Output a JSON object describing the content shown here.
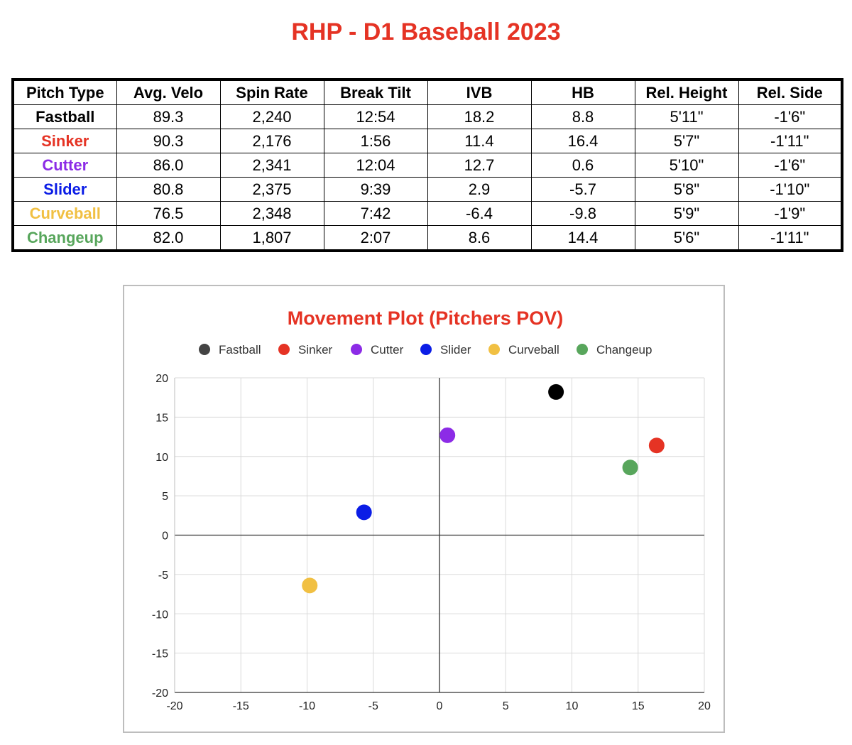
{
  "title": "RHP - D1 Baseball 2023",
  "table": {
    "headers": [
      "Pitch Type",
      "Avg. Velo",
      "Spin Rate",
      "Break Tilt",
      "IVB",
      "HB",
      "Rel. Height",
      "Rel. Side"
    ],
    "rows": [
      {
        "pitch": "Fastball",
        "color": "#000000",
        "cells": [
          "89.3",
          "2,240",
          "12:54",
          "18.2",
          "8.8",
          "5'11\"",
          "-1'6\""
        ]
      },
      {
        "pitch": "Sinker",
        "color": "#e53324",
        "cells": [
          "90.3",
          "2,176",
          "1:56",
          "11.4",
          "16.4",
          "5'7\"",
          "-1'11\""
        ]
      },
      {
        "pitch": "Cutter",
        "color": "#8c2be6",
        "cells": [
          "86.0",
          "2,341",
          "12:04",
          "12.7",
          "0.6",
          "5'10\"",
          "-1'6\""
        ]
      },
      {
        "pitch": "Slider",
        "color": "#0b1de6",
        "cells": [
          "80.8",
          "2,375",
          "9:39",
          "2.9",
          "-5.7",
          "5'8\"",
          "-1'10\""
        ]
      },
      {
        "pitch": "Curveball",
        "color": "#f1c043",
        "cells": [
          "76.5",
          "2,348",
          "7:42",
          "-6.4",
          "-9.8",
          "5'9\"",
          "-1'9\""
        ]
      },
      {
        "pitch": "Changeup",
        "color": "#58a65c",
        "cells": [
          "82.0",
          "1,807",
          "2:07",
          "8.6",
          "14.4",
          "5'6\"",
          "-1'11\""
        ]
      }
    ]
  },
  "chart_data": {
    "type": "scatter",
    "title": "Movement Plot (Pitchers POV)",
    "title_color": "#e53324",
    "xlabel": "",
    "ylabel": "",
    "xlim": [
      -20,
      20
    ],
    "ylim": [
      -20,
      20
    ],
    "xticks": [
      -20,
      -15,
      -10,
      -5,
      0,
      5,
      10,
      15,
      20
    ],
    "yticks": [
      20,
      15,
      10,
      5,
      0,
      -5,
      -10,
      -15,
      -20
    ],
    "grid": true,
    "legend_position": "top",
    "series": [
      {
        "name": "Fastball",
        "color": "#000000",
        "legend_color": "#444444",
        "points": [
          [
            8.8,
            18.2
          ]
        ]
      },
      {
        "name": "Sinker",
        "color": "#e53324",
        "legend_color": "#e53324",
        "points": [
          [
            16.4,
            11.4
          ]
        ]
      },
      {
        "name": "Cutter",
        "color": "#8c2be6",
        "legend_color": "#8c2be6",
        "points": [
          [
            0.6,
            12.7
          ]
        ]
      },
      {
        "name": "Slider",
        "color": "#0b1de6",
        "legend_color": "#0b1de6",
        "points": [
          [
            -5.7,
            2.9
          ]
        ]
      },
      {
        "name": "Curveball",
        "color": "#f1c043",
        "legend_color": "#f1c043",
        "points": [
          [
            -9.8,
            -6.4
          ]
        ]
      },
      {
        "name": "Changeup",
        "color": "#58a65c",
        "legend_color": "#58a65c",
        "points": [
          [
            14.4,
            8.6
          ]
        ]
      }
    ]
  }
}
